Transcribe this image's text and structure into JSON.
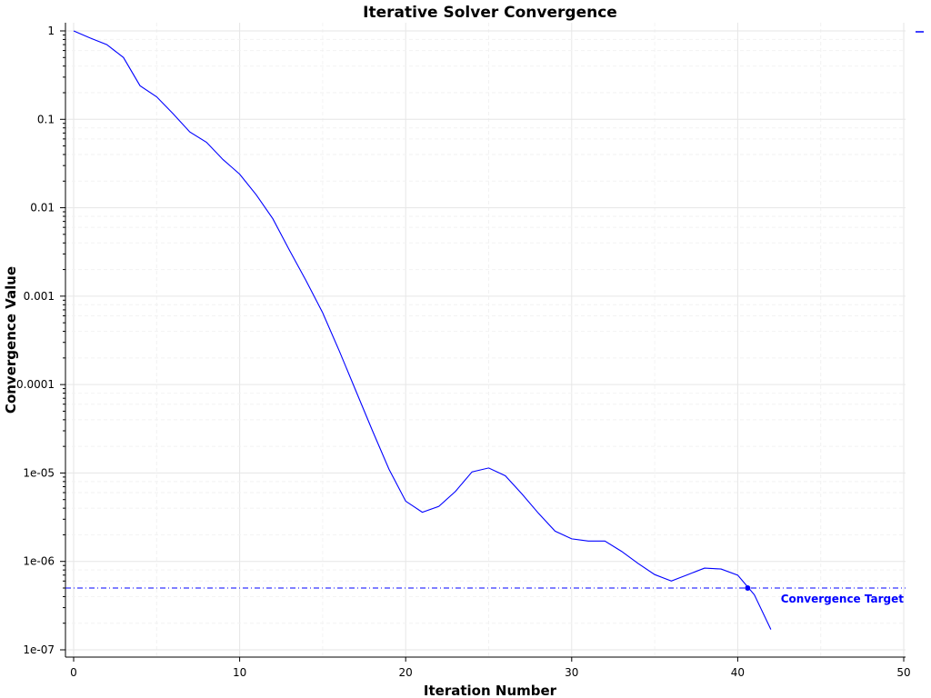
{
  "chart_data": {
    "type": "line",
    "title": "Iterative Solver Convergence",
    "xlabel": "Iteration Number",
    "ylabel": "Convergence Value",
    "xlim": [
      0,
      50
    ],
    "ylim": [
      1e-07,
      1
    ],
    "yscale": "log",
    "grid": true,
    "legend": "top-right",
    "x_ticks": [
      "0",
      "10",
      "20",
      "30",
      "40",
      "50"
    ],
    "y_ticks": [
      "1e-07",
      "1e-06",
      "1e-05",
      "0.0001",
      "0.001",
      "0.01",
      "0.1",
      "1"
    ],
    "series": [
      {
        "color": "#0000ff",
        "x": [
          0,
          1,
          2,
          3,
          4,
          5,
          6,
          7,
          8,
          9,
          10,
          11,
          12,
          13,
          14,
          15,
          16,
          17,
          18,
          19,
          20,
          21,
          22,
          23,
          24,
          25,
          26,
          27,
          28,
          29,
          30,
          31,
          32,
          33,
          34,
          35,
          36,
          37,
          38,
          39,
          40,
          41,
          42
        ],
        "y": [
          1,
          0.83,
          0.7,
          0.5,
          0.24,
          0.18,
          0.115,
          0.072,
          0.055,
          0.035,
          0.024,
          0.014,
          0.0075,
          0.0033,
          0.0015,
          0.00065,
          0.00024,
          8.5e-05,
          3e-05,
          1.1e-05,
          4.8e-06,
          3.6e-06,
          4.2e-06,
          6.2e-06,
          1.03e-05,
          1.14e-05,
          9.3e-06,
          5.8e-06,
          3.5e-06,
          2.2e-06,
          1.8e-06,
          1.7e-06,
          1.7e-06,
          1.3e-06,
          9.5e-07,
          7.1e-07,
          6e-07,
          7.1e-07,
          8.4e-07,
          8.2e-07,
          7e-07,
          4.2e-07,
          1.7e-07
        ]
      }
    ],
    "target": {
      "label": "Convergence Target",
      "value": 5e-07,
      "color": "#0000ff",
      "marker_x": 40.6
    }
  }
}
